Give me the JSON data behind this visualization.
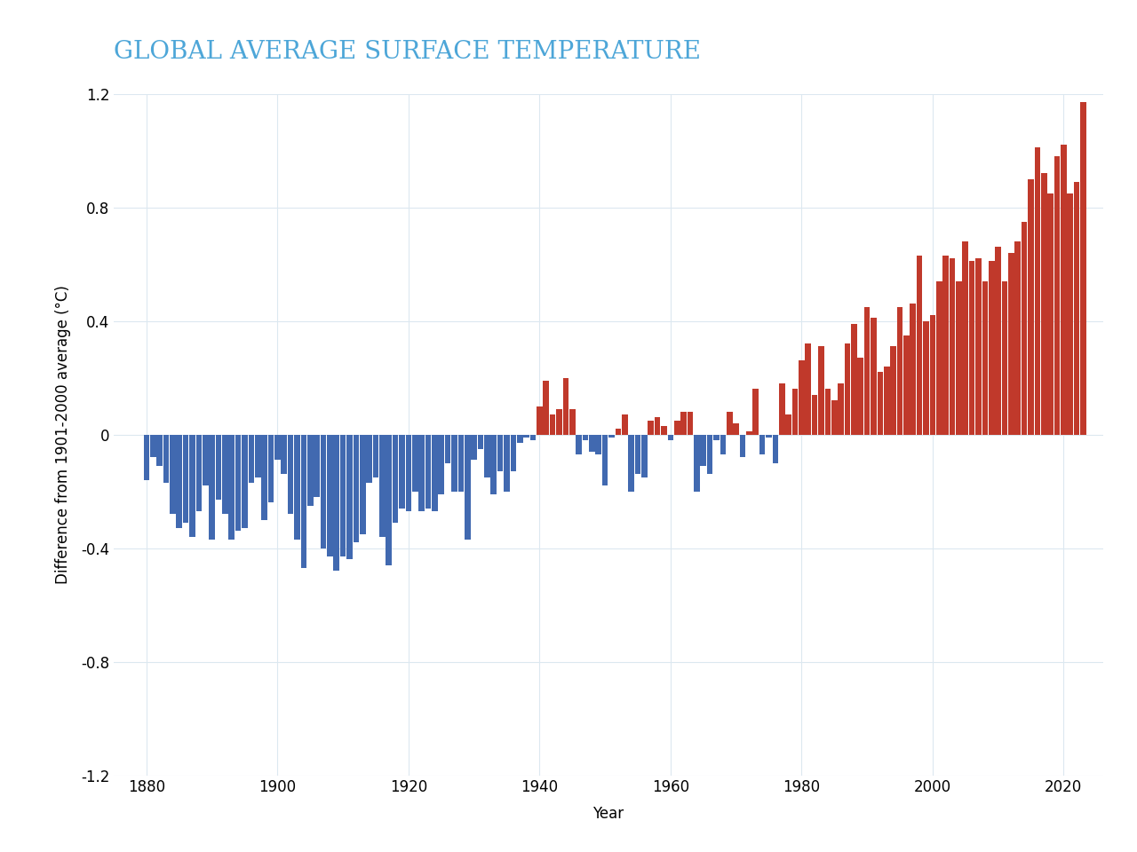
{
  "title": "GLOBAL AVERAGE SURFACE TEMPERATURE",
  "title_color": "#4da6d8",
  "xlabel": "Year",
  "ylabel": "Difference from 1901-2000 average (°C)",
  "ylim": [
    -1.2,
    1.2
  ],
  "yticks": [
    -1.2,
    -0.8,
    -0.4,
    0,
    0.4,
    0.8,
    1.2
  ],
  "background_color": "#ffffff",
  "grid_color": "#dce8f0",
  "bar_color_negative": "#4169b0",
  "bar_color_positive": "#c0392b",
  "years": [
    1880,
    1881,
    1882,
    1883,
    1884,
    1885,
    1886,
    1887,
    1888,
    1889,
    1890,
    1891,
    1892,
    1893,
    1894,
    1895,
    1896,
    1897,
    1898,
    1899,
    1900,
    1901,
    1902,
    1903,
    1904,
    1905,
    1906,
    1907,
    1908,
    1909,
    1910,
    1911,
    1912,
    1913,
    1914,
    1915,
    1916,
    1917,
    1918,
    1919,
    1920,
    1921,
    1922,
    1923,
    1924,
    1925,
    1926,
    1927,
    1928,
    1929,
    1930,
    1931,
    1932,
    1933,
    1934,
    1935,
    1936,
    1937,
    1938,
    1939,
    1940,
    1941,
    1942,
    1943,
    1944,
    1945,
    1946,
    1947,
    1948,
    1949,
    1950,
    1951,
    1952,
    1953,
    1954,
    1955,
    1956,
    1957,
    1958,
    1959,
    1960,
    1961,
    1962,
    1963,
    1964,
    1965,
    1966,
    1967,
    1968,
    1969,
    1970,
    1971,
    1972,
    1973,
    1974,
    1975,
    1976,
    1977,
    1978,
    1979,
    1980,
    1981,
    1982,
    1983,
    1984,
    1985,
    1986,
    1987,
    1988,
    1989,
    1990,
    1991,
    1992,
    1993,
    1994,
    1995,
    1996,
    1997,
    1998,
    1999,
    2000,
    2001,
    2002,
    2003,
    2004,
    2005,
    2006,
    2007,
    2008,
    2009,
    2010,
    2011,
    2012,
    2013,
    2014,
    2015,
    2016,
    2017,
    2018,
    2019,
    2020,
    2021,
    2022,
    2023
  ],
  "anomalies": [
    -0.16,
    -0.08,
    -0.11,
    -0.17,
    -0.28,
    -0.33,
    -0.31,
    -0.36,
    -0.27,
    -0.18,
    -0.37,
    -0.23,
    -0.28,
    -0.37,
    -0.34,
    -0.33,
    -0.17,
    -0.15,
    -0.3,
    -0.24,
    -0.09,
    -0.14,
    -0.28,
    -0.37,
    -0.47,
    -0.25,
    -0.22,
    -0.4,
    -0.43,
    -0.48,
    -0.43,
    -0.44,
    -0.38,
    -0.35,
    -0.17,
    -0.15,
    -0.36,
    -0.46,
    -0.31,
    -0.26,
    -0.27,
    -0.2,
    -0.27,
    -0.26,
    -0.27,
    -0.21,
    -0.1,
    -0.2,
    -0.2,
    -0.37,
    -0.09,
    -0.05,
    -0.15,
    -0.21,
    -0.13,
    -0.2,
    -0.13,
    -0.03,
    -0.01,
    -0.02,
    0.1,
    0.19,
    0.07,
    0.09,
    0.2,
    0.09,
    -0.07,
    -0.02,
    -0.06,
    -0.07,
    -0.18,
    -0.01,
    0.02,
    0.07,
    -0.2,
    -0.14,
    -0.15,
    0.05,
    0.06,
    0.03,
    -0.02,
    0.05,
    0.08,
    0.08,
    -0.2,
    -0.11,
    -0.14,
    -0.02,
    -0.07,
    0.08,
    0.04,
    -0.08,
    0.01,
    0.16,
    -0.07,
    -0.01,
    -0.1,
    0.18,
    0.07,
    0.16,
    0.26,
    0.32,
    0.14,
    0.31,
    0.16,
    0.12,
    0.18,
    0.32,
    0.39,
    0.27,
    0.45,
    0.41,
    0.22,
    0.24,
    0.31,
    0.45,
    0.35,
    0.46,
    0.63,
    0.4,
    0.42,
    0.54,
    0.63,
    0.62,
    0.54,
    0.68,
    0.61,
    0.62,
    0.54,
    0.61,
    0.66,
    0.54,
    0.64,
    0.68,
    0.75,
    0.9,
    1.01,
    0.92,
    0.85,
    0.98,
    1.02,
    0.85,
    0.89,
    1.17
  ],
  "xtick_positions": [
    1880,
    1900,
    1920,
    1940,
    1960,
    1980,
    2000,
    2020
  ],
  "xlim": [
    1875,
    2026
  ],
  "title_fontsize": 20,
  "axis_fontsize": 12,
  "tick_fontsize": 12
}
